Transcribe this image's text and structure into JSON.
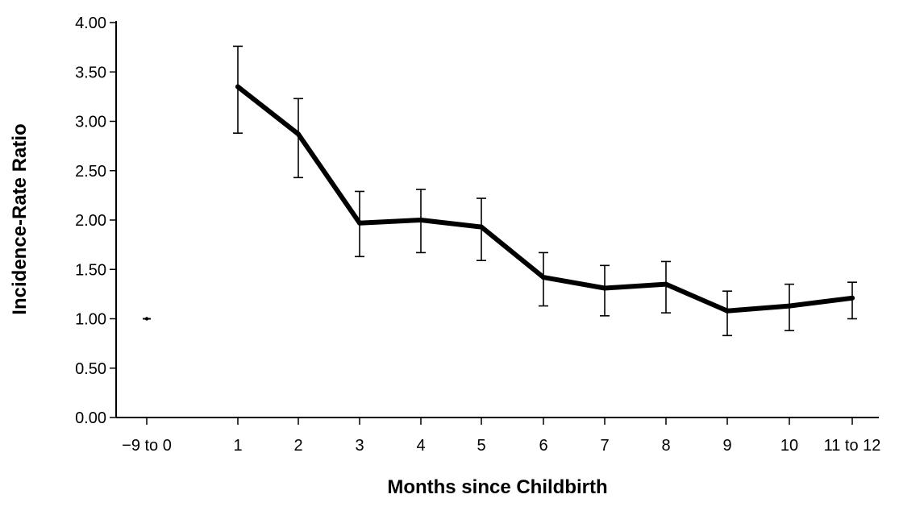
{
  "chart_data": {
    "type": "line",
    "xlabel": "Months since Childbirth",
    "ylabel": "Incidence-Rate Ratio",
    "categories": [
      "−9 to 0",
      "1",
      "2",
      "3",
      "4",
      "5",
      "6",
      "7",
      "8",
      "9",
      "10",
      "11 to 12"
    ],
    "y_ticks": [
      "0.00",
      "0.50",
      "1.00",
      "1.50",
      "2.00",
      "2.50",
      "3.00",
      "3.50",
      "4.00"
    ],
    "ylim": [
      0,
      4
    ],
    "grid": false,
    "series": [
      {
        "values": [
          1.0,
          3.35,
          2.87,
          1.97,
          2.0,
          1.93,
          1.42,
          1.31,
          1.35,
          1.08,
          1.13,
          1.21
        ],
        "ci_lower": [
          null,
          2.88,
          2.43,
          1.63,
          1.67,
          1.59,
          1.13,
          1.03,
          1.06,
          0.83,
          0.88,
          1.0
        ],
        "ci_upper": [
          null,
          3.76,
          3.23,
          2.29,
          2.31,
          2.22,
          1.67,
          1.54,
          1.58,
          1.28,
          1.35,
          1.37
        ]
      }
    ],
    "reference_category": "−9 to 0",
    "line_color": "#000000"
  }
}
